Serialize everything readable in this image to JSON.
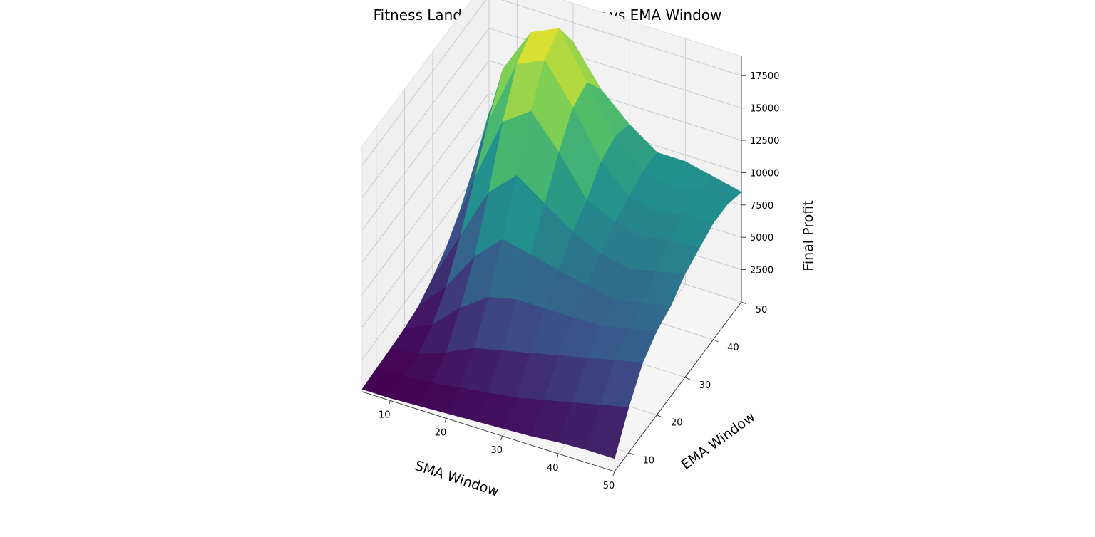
{
  "chart_data": {
    "type": "surface",
    "title": "Fitness Landscape: SMA Window vs EMA Window",
    "xlabel": "SMA Window",
    "ylabel": "EMA Window",
    "zlabel": "Final Profit",
    "xlim": [
      5,
      50
    ],
    "ylim": [
      5,
      50
    ],
    "zlim": [
      0,
      19000
    ],
    "xticks": [
      "10",
      "20",
      "30",
      "40",
      "50"
    ],
    "yticks": [
      "10",
      "20",
      "30",
      "40",
      "50"
    ],
    "zticks": [
      "2500",
      "5000",
      "7500",
      "10000",
      "12500",
      "15000",
      "17500"
    ],
    "x_values": [
      5,
      10,
      15,
      20,
      25,
      30,
      35,
      40,
      45,
      50
    ],
    "y_values": [
      5,
      10,
      15,
      20,
      25,
      30,
      35,
      40,
      45,
      50
    ],
    "z_values": [
      [
        200,
        300,
        400,
        500,
        800,
        1500,
        2500,
        4000,
        6000,
        8500
      ],
      [
        200,
        400,
        700,
        1500,
        3000,
        5500,
        8500,
        11500,
        14000,
        13000
      ],
      [
        300,
        600,
        1500,
        3500,
        6000,
        9500,
        13500,
        16500,
        17500,
        15000
      ],
      [
        400,
        900,
        2500,
        5000,
        8000,
        11500,
        15000,
        17500,
        18500,
        16000
      ],
      [
        500,
        1200,
        3000,
        5500,
        7500,
        10000,
        12500,
        14500,
        15000,
        13000
      ],
      [
        600,
        1500,
        3500,
        5500,
        7000,
        8500,
        9500,
        11000,
        11500,
        11000
      ],
      [
        700,
        2000,
        4000,
        5500,
        6500,
        7500,
        8500,
        9000,
        9500,
        9500
      ],
      [
        900,
        2500,
        4500,
        5500,
        6000,
        7000,
        8000,
        8500,
        9000,
        9500
      ],
      [
        1000,
        3000,
        5000,
        6000,
        6500,
        7500,
        8500,
        9000,
        9500,
        9000
      ],
      [
        1000,
        3500,
        5500,
        6500,
        7000,
        8000,
        8500,
        9000,
        9000,
        8500
      ]
    ],
    "colormap": [
      "#440154",
      "#3b528b",
      "#21918c",
      "#5ec962",
      "#fde725"
    ],
    "grid": true
  }
}
